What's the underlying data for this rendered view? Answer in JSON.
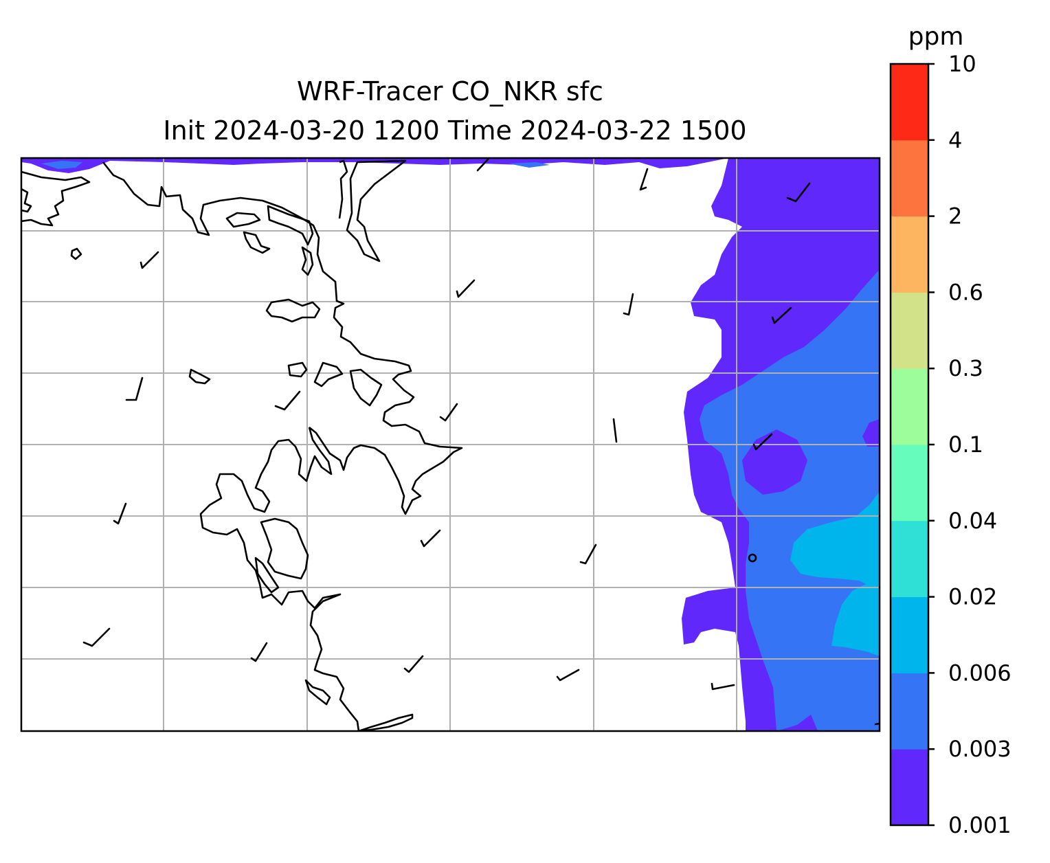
{
  "title": {
    "line1": "WRF-Tracer CO_NKR sfc",
    "line2": "Init 2024-03-20 1200 Time 2024-03-22 1500"
  },
  "colorbar": {
    "unit": "ppm",
    "levels": [
      "0.001",
      "0.003",
      "0.006",
      "0.02",
      "0.04",
      "0.1",
      "0.3",
      "0.6",
      "2",
      "4",
      "10"
    ],
    "colors": [
      "#6128fb",
      "#3574f5",
      "#00b5ec",
      "#2ee0d6",
      "#66fcbc",
      "#9dfd9a",
      "#d1e289",
      "#feb560",
      "#fe743f",
      "#fe2a17"
    ]
  },
  "map": {
    "gridlines": true,
    "wind_barbs": 25
  }
}
